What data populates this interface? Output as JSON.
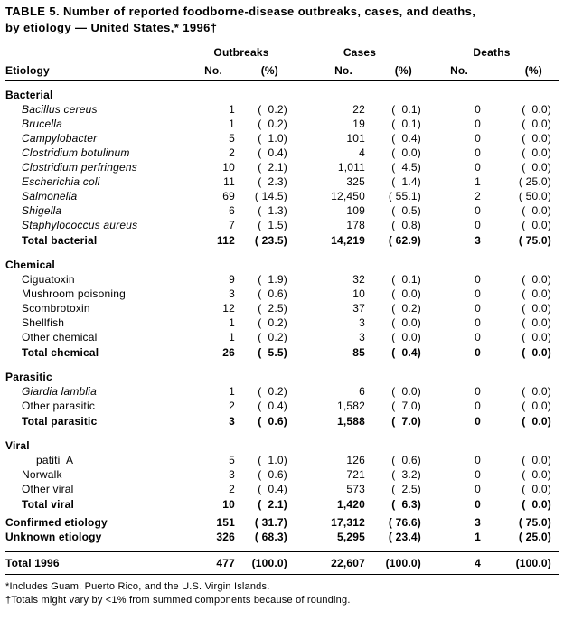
{
  "title": {
    "line1": "TABLE 5. Number of reported foodborne-disease outbreaks, cases, and deaths,",
    "line2": "by etiology — United States,* 1996†"
  },
  "header": {
    "etiology": "Etiology",
    "groups": [
      "Outbreaks",
      "Cases",
      "Deaths"
    ],
    "no": "No.",
    "pct": "(%)"
  },
  "rows": [
    {
      "type": "section",
      "label": "Bacterial"
    },
    {
      "type": "item",
      "level": 1,
      "italic": true,
      "label": "Bacillus cereus",
      "values": [
        "1",
        "(  0.2)",
        "22",
        "(  0.1)",
        "0",
        "(  0.0)"
      ]
    },
    {
      "type": "item",
      "level": 1,
      "italic": true,
      "label": "Brucella",
      "values": [
        "1",
        "(  0.2)",
        "19",
        "(  0.1)",
        "0",
        "(  0.0)"
      ]
    },
    {
      "type": "item",
      "level": 1,
      "italic": true,
      "label": "Campylobacter",
      "values": [
        "5",
        "(  1.0)",
        "101",
        "(  0.4)",
        "0",
        "(  0.0)"
      ]
    },
    {
      "type": "item",
      "level": 1,
      "italic": true,
      "label": "Clostridium botulinum",
      "values": [
        "2",
        "(  0.4)",
        "4",
        "(  0.0)",
        "0",
        "(  0.0)"
      ]
    },
    {
      "type": "item",
      "level": 1,
      "italic": true,
      "label": "Clostridium perfringens",
      "values": [
        "10",
        "(  2.1)",
        "1,011",
        "(  4.5)",
        "0",
        "(  0.0)"
      ]
    },
    {
      "type": "item",
      "level": 1,
      "italic": true,
      "label": "Escherichia coli",
      "values": [
        "11",
        "(  2.3)",
        "325",
        "(  1.4)",
        "1",
        "( 25.0)"
      ]
    },
    {
      "type": "item",
      "level": 1,
      "italic": true,
      "label": "Salmonella",
      "values": [
        "69",
        "( 14.5)",
        "12,450",
        "( 55.1)",
        "2",
        "( 50.0)"
      ]
    },
    {
      "type": "item",
      "level": 1,
      "italic": true,
      "label": "Shigella",
      "values": [
        "6",
        "(  1.3)",
        "109",
        "(  0.5)",
        "0",
        "(  0.0)"
      ]
    },
    {
      "type": "item",
      "level": 1,
      "italic": true,
      "label": "Staphylococcus aureus",
      "values": [
        "7",
        "(  1.5)",
        "178",
        "(  0.8)",
        "0",
        "(  0.0)"
      ]
    },
    {
      "type": "total",
      "level": 1,
      "label": "Total bacterial",
      "values": [
        "112",
        "( 23.5)",
        "14,219",
        "( 62.9)",
        "3",
        "( 75.0)"
      ]
    },
    {
      "type": "section",
      "label": "Chemical"
    },
    {
      "type": "item",
      "level": 1,
      "label": "Ciguatoxin",
      "values": [
        "9",
        "(  1.9)",
        "32",
        "(  0.1)",
        "0",
        "(  0.0)"
      ]
    },
    {
      "type": "item",
      "level": 1,
      "label": "Mushroom poisoning",
      "values": [
        "3",
        "(  0.6)",
        "10",
        "(  0.0)",
        "0",
        "(  0.0)"
      ]
    },
    {
      "type": "item",
      "level": 1,
      "label": "Scombrotoxin",
      "values": [
        "12",
        "(  2.5)",
        "37",
        "(  0.2)",
        "0",
        "(  0.0)"
      ]
    },
    {
      "type": "item",
      "level": 1,
      "label": "Shellfish",
      "values": [
        "1",
        "(  0.2)",
        "3",
        "(  0.0)",
        "0",
        "(  0.0)"
      ]
    },
    {
      "type": "item",
      "level": 1,
      "label": "Other chemical",
      "values": [
        "1",
        "(  0.2)",
        "3",
        "(  0.0)",
        "0",
        "(  0.0)"
      ]
    },
    {
      "type": "total",
      "level": 1,
      "label": "Total chemical",
      "values": [
        "26",
        "(  5.5)",
        "85",
        "(  0.4)",
        "0",
        "(  0.0)"
      ]
    },
    {
      "type": "section",
      "label": "Parasitic"
    },
    {
      "type": "item",
      "level": 1,
      "italic": true,
      "label": "Giardia lamblia",
      "values": [
        "1",
        "(  0.2)",
        "6",
        "(  0.0)",
        "0",
        "(  0.0)"
      ]
    },
    {
      "type": "item",
      "level": 1,
      "label": "Other parasitic",
      "values": [
        "2",
        "(  0.4)",
        "1,582",
        "(  7.0)",
        "0",
        "(  0.0)"
      ]
    },
    {
      "type": "total",
      "level": 1,
      "label": "Total parasitic",
      "values": [
        "3",
        "(  0.6)",
        "1,588",
        "(  7.0)",
        "0",
        "(  0.0)"
      ]
    },
    {
      "type": "section",
      "label": "Viral"
    },
    {
      "type": "item",
      "level": 2,
      "label": "patiti  A",
      "values": [
        "5",
        "(  1.0)",
        "126",
        "(  0.6)",
        "0",
        "(  0.0)"
      ]
    },
    {
      "type": "item",
      "level": 1,
      "label": "Norwalk",
      "values": [
        "3",
        "(  0.6)",
        "721",
        "(  3.2)",
        "0",
        "(  0.0)"
      ]
    },
    {
      "type": "item",
      "level": 1,
      "label": "Other viral",
      "values": [
        "2",
        "(  0.4)",
        "573",
        "(  2.5)",
        "0",
        "(  0.0)"
      ]
    },
    {
      "type": "total",
      "level": 1,
      "label": "Total viral",
      "values": [
        "10",
        "(  2.1)",
        "1,420",
        "(  6.3)",
        "0",
        "(  0.0)"
      ]
    },
    {
      "type": "summary",
      "label": "Confirmed etiology",
      "values": [
        "151",
        "( 31.7)",
        "17,312",
        "( 76.6)",
        "3",
        "( 75.0)"
      ]
    },
    {
      "type": "summary",
      "gap_below": true,
      "label": "Unknown etiology",
      "values": [
        "326",
        "( 68.3)",
        "5,295",
        "( 23.4)",
        "1",
        "( 25.0)"
      ]
    },
    {
      "type": "grand",
      "label": "Total 1996",
      "values": [
        "477",
        "(100.0)",
        "22,607",
        "(100.0)",
        "4",
        "(100.0)"
      ]
    }
  ],
  "footnotes": [
    "*Includes Guam, Puerto Rico, and the U.S. Virgin Islands.",
    "†Totals might vary by <1% from summed components because of rounding."
  ]
}
